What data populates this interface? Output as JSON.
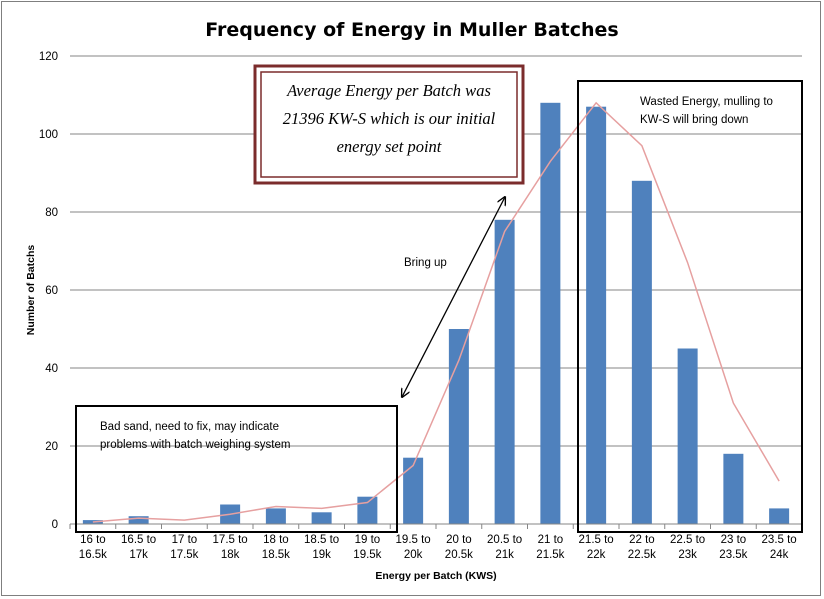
{
  "chart_data": {
    "type": "bar",
    "title": "Frequency of Energy in Muller Batches",
    "xlabel": "Energy per Batch (KWS)",
    "ylabel": "Number of Batchs",
    "ylim": [
      0,
      120
    ],
    "yticks": [
      0,
      20,
      40,
      60,
      80,
      100,
      120
    ],
    "grid": true,
    "categories": [
      [
        "16 to",
        "16.5k"
      ],
      [
        "16.5 to",
        "17k"
      ],
      [
        "17 to",
        "17.5k"
      ],
      [
        "17.5 to",
        "18k"
      ],
      [
        "18 to",
        "18.5k"
      ],
      [
        "18.5 to",
        "19k"
      ],
      [
        "19 to",
        "19.5k"
      ],
      [
        "19.5 to",
        "20k"
      ],
      [
        "20 to",
        "20.5k"
      ],
      [
        "20.5 to",
        "21k"
      ],
      [
        "21 to",
        "21.5k"
      ],
      [
        "21.5 to",
        "22k"
      ],
      [
        "22 to",
        "22.5k"
      ],
      [
        "22.5 to",
        "23k"
      ],
      [
        "23 to",
        "23.5k"
      ],
      [
        "23.5 to",
        "24k"
      ]
    ],
    "series": [
      {
        "type": "bar",
        "color": "#4f81bd",
        "values": [
          1,
          2,
          0,
          5,
          4,
          3,
          7,
          17,
          50,
          78,
          108,
          107,
          88,
          45,
          18,
          4
        ]
      },
      {
        "type": "line",
        "color": "#e6a0a0",
        "values": [
          0.5,
          1.5,
          1,
          2.5,
          4.5,
          4,
          5.5,
          15,
          42,
          75,
          93,
          108,
          97,
          67,
          31,
          11
        ]
      }
    ],
    "annotations": {
      "average_box": [
        "Average Energy per Batch was",
        "21396 KW-S which is our initial",
        "energy set point"
      ],
      "bad_sand": [
        "Bad sand, need to fix, may indicate",
        "problems with batch weighing system"
      ],
      "wasted": [
        "Wasted Energy, mulling to",
        "KW-S will bring down"
      ],
      "bring_up": "Bring up"
    }
  }
}
